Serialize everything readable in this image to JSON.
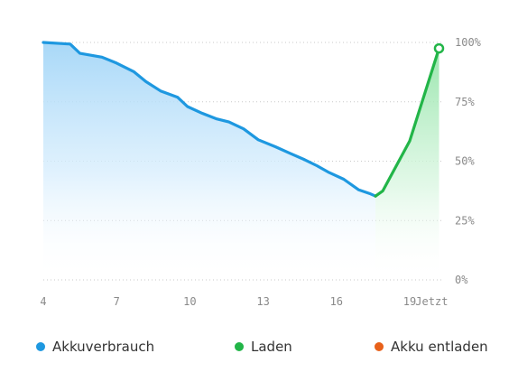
{
  "chart_data": {
    "type": "line",
    "x_ticks": [
      "4",
      "7",
      "10",
      "13",
      "16",
      "19",
      "Jetzt"
    ],
    "y_ticks": [
      "0%",
      "25%",
      "50%",
      "75%",
      "100%"
    ],
    "ylim": [
      0,
      100
    ],
    "series": [
      {
        "name": "Akkuverbrauch",
        "color": "#1e98e0",
        "x": [
          4.0,
          5.1,
          5.5,
          6.4,
          7.0,
          7.7,
          8.2,
          8.8,
          9.5,
          9.9,
          10.5,
          11.1,
          11.6,
          12.2,
          12.8,
          13.5,
          14.1,
          14.7,
          15.2,
          15.7,
          16.3,
          16.9,
          17.4,
          17.6
        ],
        "values": [
          100,
          99.3,
          95.4,
          93.8,
          91.3,
          87.7,
          83.5,
          79.6,
          76.9,
          73,
          70.2,
          67.8,
          66.5,
          63.6,
          59,
          56.1,
          53.3,
          50.6,
          48.1,
          45.2,
          42.4,
          38,
          36.2,
          35.3
        ]
      },
      {
        "name": "Laden",
        "color": "#22b548",
        "x": [
          17.6,
          17.9,
          19.0,
          20.2
        ],
        "values": [
          35.3,
          37.5,
          58.5,
          97.5
        ]
      }
    ],
    "legend": [
      {
        "name": "Akkuverbrauch",
        "color": "#1e98e0"
      },
      {
        "name": "Laden",
        "color": "#22b548"
      },
      {
        "name": "Akku entladen",
        "color": "#e8611a"
      }
    ],
    "grid": true
  }
}
